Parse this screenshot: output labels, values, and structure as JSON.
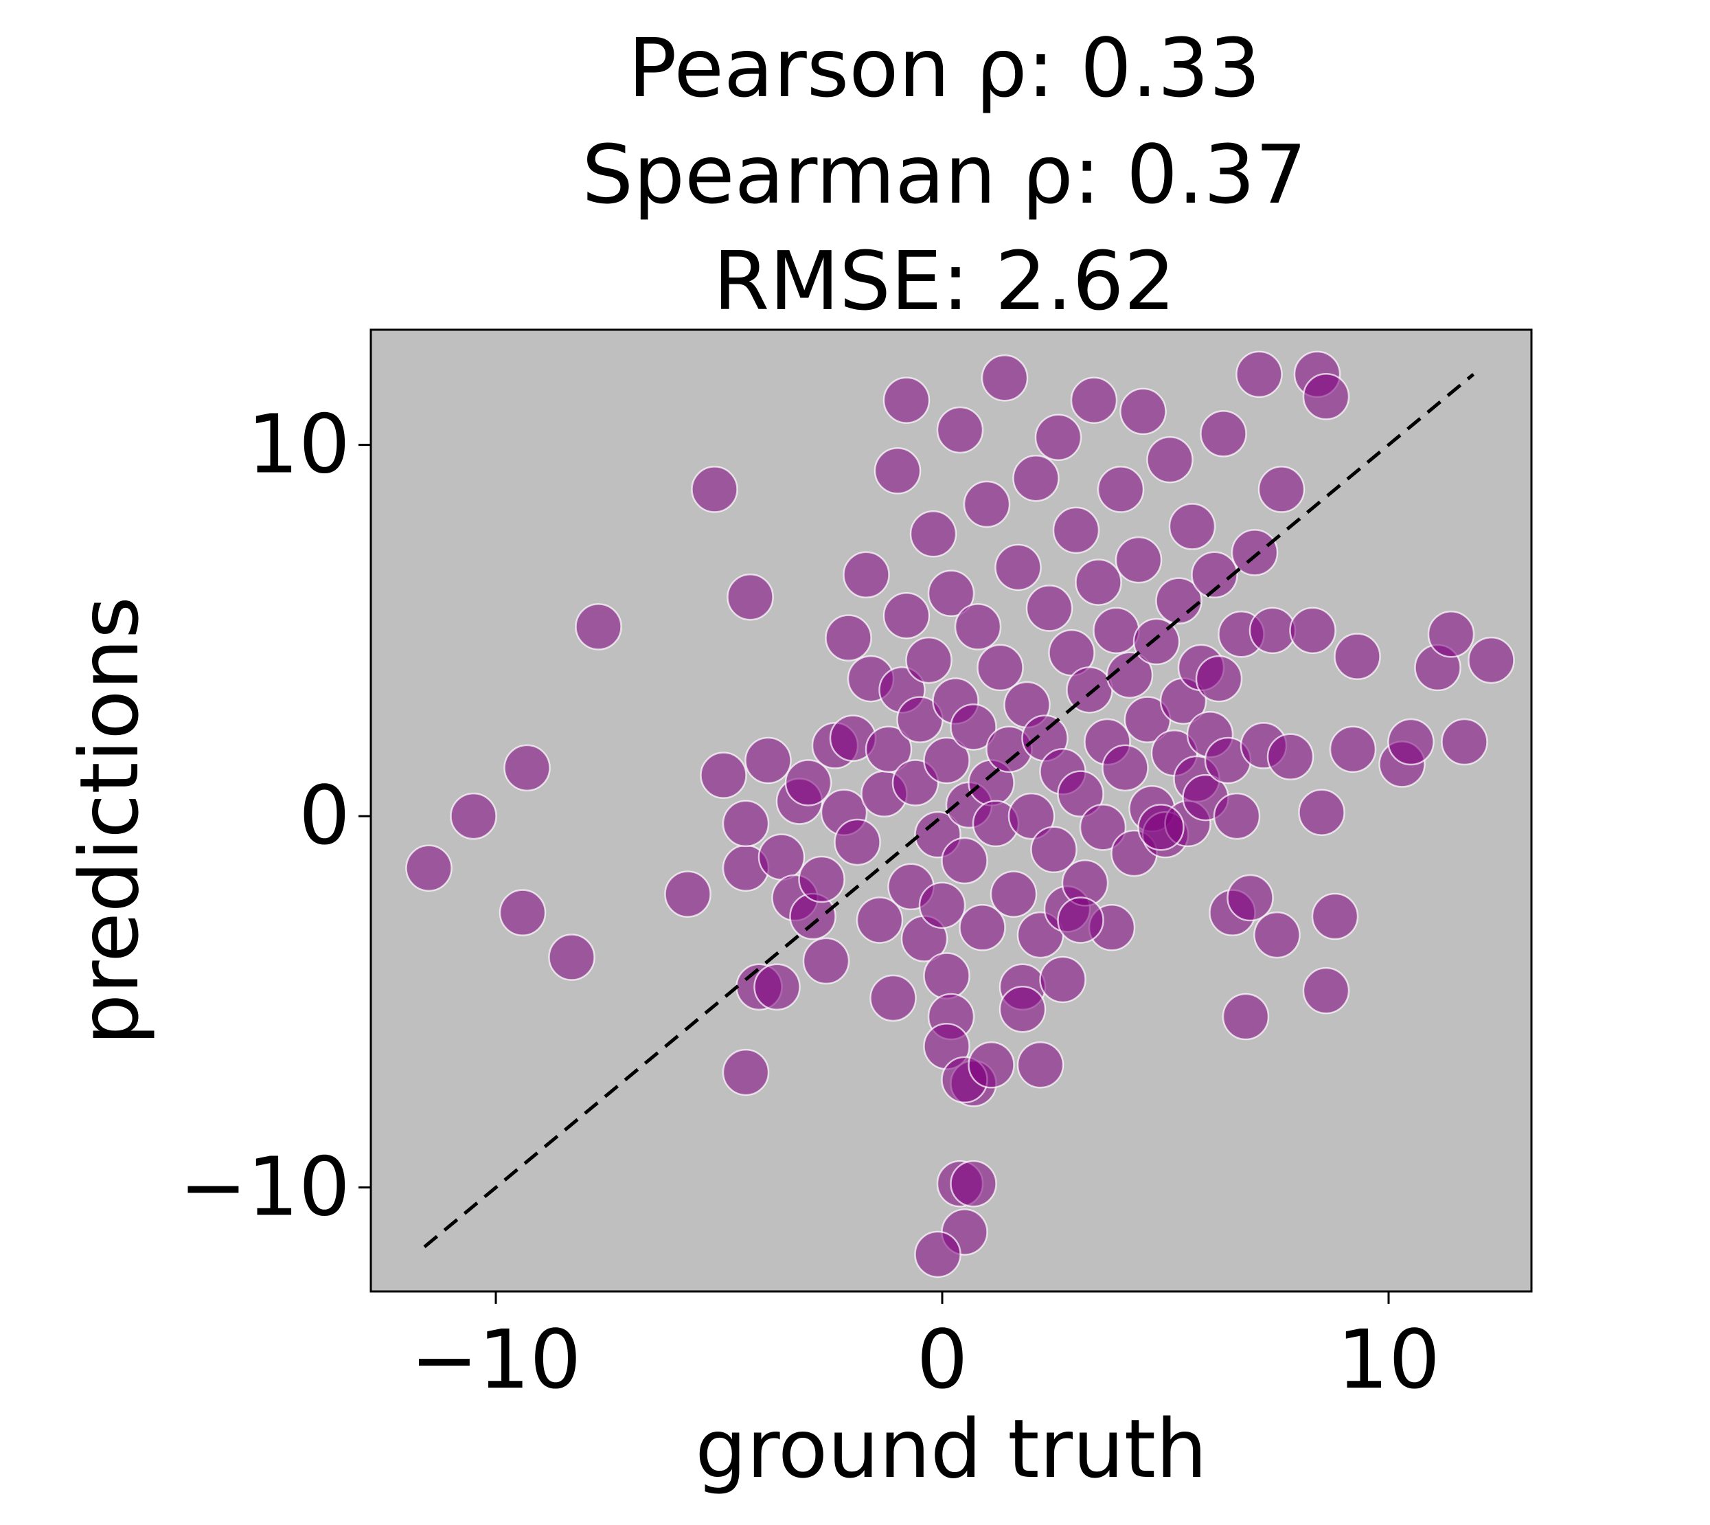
{
  "chart_data": {
    "type": "scatter",
    "title_lines": [
      "Pearson ρ: 0.33",
      "Spearman ρ: 0.37",
      "RMSE: 2.62"
    ],
    "xlabel": "ground truth",
    "ylabel": "predictions",
    "xlim": [
      -12.8,
      13.2
    ],
    "ylim": [
      -12.8,
      13.1
    ],
    "xticks": [
      -10,
      0,
      10
    ],
    "yticks": [
      -10,
      0,
      10
    ],
    "xtick_labels": [
      "−10",
      "0",
      "10"
    ],
    "ytick_labels": [
      "−10",
      "0",
      "10"
    ],
    "grid": false,
    "background_color": "#bfbfbf",
    "marker_color": "#800080",
    "marker_alpha": 0.55,
    "marker_edge_color": "#ffffff",
    "reference_line": {
      "style": "dashed",
      "color": "#000000",
      "from": [
        -11.6,
        -11.6
      ],
      "to": [
        11.9,
        11.9
      ]
    },
    "series": [
      {
        "points": [
          [
            -11.5,
            -1.4
          ],
          [
            -10.5,
            0.0
          ],
          [
            -9.3,
            1.3
          ],
          [
            -9.4,
            -2.6
          ],
          [
            -8.3,
            -3.8
          ],
          [
            -7.7,
            5.1
          ],
          [
            -5.7,
            -2.1
          ],
          [
            -5.1,
            8.8
          ],
          [
            -4.9,
            1.1
          ],
          [
            -4.3,
            5.9
          ],
          [
            -4.4,
            -6.9
          ],
          [
            -4.1,
            -4.6
          ],
          [
            -4.4,
            -1.4
          ],
          [
            -4.4,
            -0.2
          ],
          [
            -3.9,
            1.5
          ],
          [
            -3.7,
            -4.6
          ],
          [
            -3.6,
            -1.1
          ],
          [
            -3.3,
            -2.2
          ],
          [
            -3.2,
            0.4
          ],
          [
            -3.0,
            0.9
          ],
          [
            -2.9,
            -2.7
          ],
          [
            -2.7,
            -1.7
          ],
          [
            -2.6,
            -3.9
          ],
          [
            -2.4,
            1.9
          ],
          [
            -2.2,
            0.1
          ],
          [
            -2.1,
            4.8
          ],
          [
            -2.0,
            2.1
          ],
          [
            -1.9,
            -0.7
          ],
          [
            -1.7,
            6.5
          ],
          [
            -1.6,
            3.7
          ],
          [
            -1.4,
            -2.8
          ],
          [
            -1.3,
            0.6
          ],
          [
            -1.2,
            1.8
          ],
          [
            -1.1,
            -4.9
          ],
          [
            -1.0,
            9.3
          ],
          [
            -0.9,
            3.4
          ],
          [
            -0.8,
            5.4
          ],
          [
            -0.8,
            11.2
          ],
          [
            -0.7,
            -1.9
          ],
          [
            -0.6,
            0.9
          ],
          [
            -0.5,
            2.6
          ],
          [
            -0.4,
            -3.3
          ],
          [
            -0.3,
            4.2
          ],
          [
            -0.2,
            7.6
          ],
          [
            -0.1,
            -0.5
          ],
          [
            0.0,
            -2.4
          ],
          [
            0.1,
            1.5
          ],
          [
            0.1,
            -4.3
          ],
          [
            0.2,
            6.0
          ],
          [
            0.3,
            3.1
          ],
          [
            0.4,
            10.4
          ],
          [
            0.5,
            -1.2
          ],
          [
            0.6,
            0.3
          ],
          [
            0.7,
            -7.2
          ],
          [
            0.7,
            2.4
          ],
          [
            0.8,
            5.1
          ],
          [
            0.9,
            -3.0
          ],
          [
            1.0,
            8.4
          ],
          [
            1.1,
            0.9
          ],
          [
            1.2,
            -0.2
          ],
          [
            1.3,
            4.0
          ],
          [
            1.4,
            11.8
          ],
          [
            1.5,
            1.8
          ],
          [
            1.6,
            -2.1
          ],
          [
            1.7,
            6.7
          ],
          [
            1.8,
            -4.6
          ],
          [
            1.9,
            3.0
          ],
          [
            2.0,
            0.0
          ],
          [
            2.1,
            9.1
          ],
          [
            2.2,
            -3.2
          ],
          [
            2.3,
            2.1
          ],
          [
            2.4,
            5.6
          ],
          [
            2.5,
            -0.9
          ],
          [
            2.6,
            10.2
          ],
          [
            2.7,
            1.2
          ],
          [
            2.8,
            -2.5
          ],
          [
            2.9,
            4.4
          ],
          [
            3.0,
            7.7
          ],
          [
            3.1,
            0.6
          ],
          [
            3.2,
            -1.8
          ],
          [
            3.3,
            3.4
          ],
          [
            3.4,
            11.2
          ],
          [
            3.5,
            6.3
          ],
          [
            3.6,
            -0.3
          ],
          [
            3.7,
            2.0
          ],
          [
            3.8,
            -3.0
          ],
          [
            3.9,
            5.0
          ],
          [
            4.0,
            8.8
          ],
          [
            4.1,
            1.3
          ],
          [
            4.2,
            3.8
          ],
          [
            4.3,
            -1.0
          ],
          [
            4.4,
            6.9
          ],
          [
            4.5,
            10.9
          ],
          [
            4.6,
            2.6
          ],
          [
            4.7,
            0.2
          ],
          [
            4.8,
            4.7
          ],
          [
            5.0,
            -0.5
          ],
          [
            5.1,
            9.6
          ],
          [
            5.2,
            1.7
          ],
          [
            5.3,
            5.8
          ],
          [
            5.4,
            3.1
          ],
          [
            5.5,
            -0.2
          ],
          [
            5.6,
            7.8
          ],
          [
            5.7,
            1.0
          ],
          [
            5.8,
            4.0
          ],
          [
            5.9,
            0.5
          ],
          [
            6.0,
            2.2
          ],
          [
            6.1,
            6.5
          ],
          [
            6.2,
            3.7
          ],
          [
            6.3,
            10.3
          ],
          [
            6.4,
            1.5
          ],
          [
            6.5,
            -2.6
          ],
          [
            6.6,
            0.0
          ],
          [
            6.7,
            4.9
          ],
          [
            6.8,
            -5.4
          ],
          [
            6.9,
            -2.2
          ],
          [
            7.0,
            7.1
          ],
          [
            7.1,
            11.9
          ],
          [
            7.2,
            1.9
          ],
          [
            7.4,
            5.0
          ],
          [
            7.5,
            -3.2
          ],
          [
            7.6,
            8.8
          ],
          [
            7.8,
            1.6
          ],
          [
            8.3,
            5.0
          ],
          [
            8.4,
            11.9
          ],
          [
            8.6,
            11.3
          ],
          [
            8.5,
            0.1
          ],
          [
            8.6,
            -4.7
          ],
          [
            8.8,
            -2.7
          ],
          [
            9.3,
            4.3
          ],
          [
            9.2,
            1.8
          ],
          [
            10.3,
            1.4
          ],
          [
            10.5,
            2.0
          ],
          [
            11.1,
            4.0
          ],
          [
            11.4,
            4.9
          ],
          [
            11.7,
            2.0
          ],
          [
            12.3,
            4.2
          ],
          [
            0.2,
            -5.4
          ],
          [
            0.1,
            -6.2
          ],
          [
            0.5,
            -7.1
          ],
          [
            1.1,
            -6.7
          ],
          [
            2.2,
            -6.7
          ],
          [
            0.4,
            -9.9
          ],
          [
            0.5,
            -11.2
          ],
          [
            -0.1,
            -11.8
          ],
          [
            0.7,
            -9.9
          ],
          [
            1.8,
            -5.2
          ],
          [
            2.7,
            -4.4
          ],
          [
            3.1,
            -2.8
          ],
          [
            4.9,
            -0.3
          ]
        ]
      }
    ]
  }
}
